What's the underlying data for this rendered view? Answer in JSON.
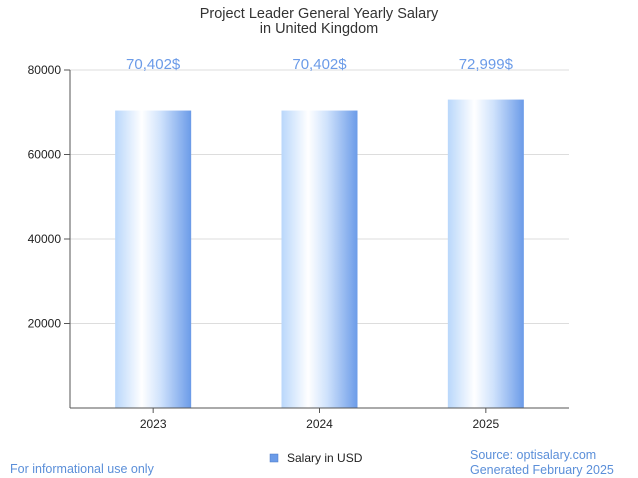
{
  "chart_data": {
    "type": "bar",
    "title_lines": [
      "Project Leader General Yearly Salary",
      "in United Kingdom"
    ],
    "categories": [
      "2023",
      "2024",
      "2025"
    ],
    "series": [
      {
        "name": "Salary in USD",
        "values": [
          70402,
          70402,
          72999
        ]
      }
    ],
    "data_labels": [
      "70,402$",
      "70,402$",
      "72,999$"
    ],
    "y_ticks": [
      "20000",
      "40000",
      "60000",
      "80000"
    ],
    "ylim": [
      0,
      80000
    ],
    "grid": true,
    "legend_position": "bottom-center"
  },
  "footer": {
    "note": "For informational use only",
    "source": "Source: optisalary.com",
    "generated": "Generated February 2025"
  },
  "colors": {
    "bar_light": "#ffffff",
    "bar_mid": "#b9d7fb",
    "bar_dark": "#6b9be8",
    "grid": "#dddddd",
    "axis": "#555555",
    "accent_text": "#6b9be8"
  }
}
